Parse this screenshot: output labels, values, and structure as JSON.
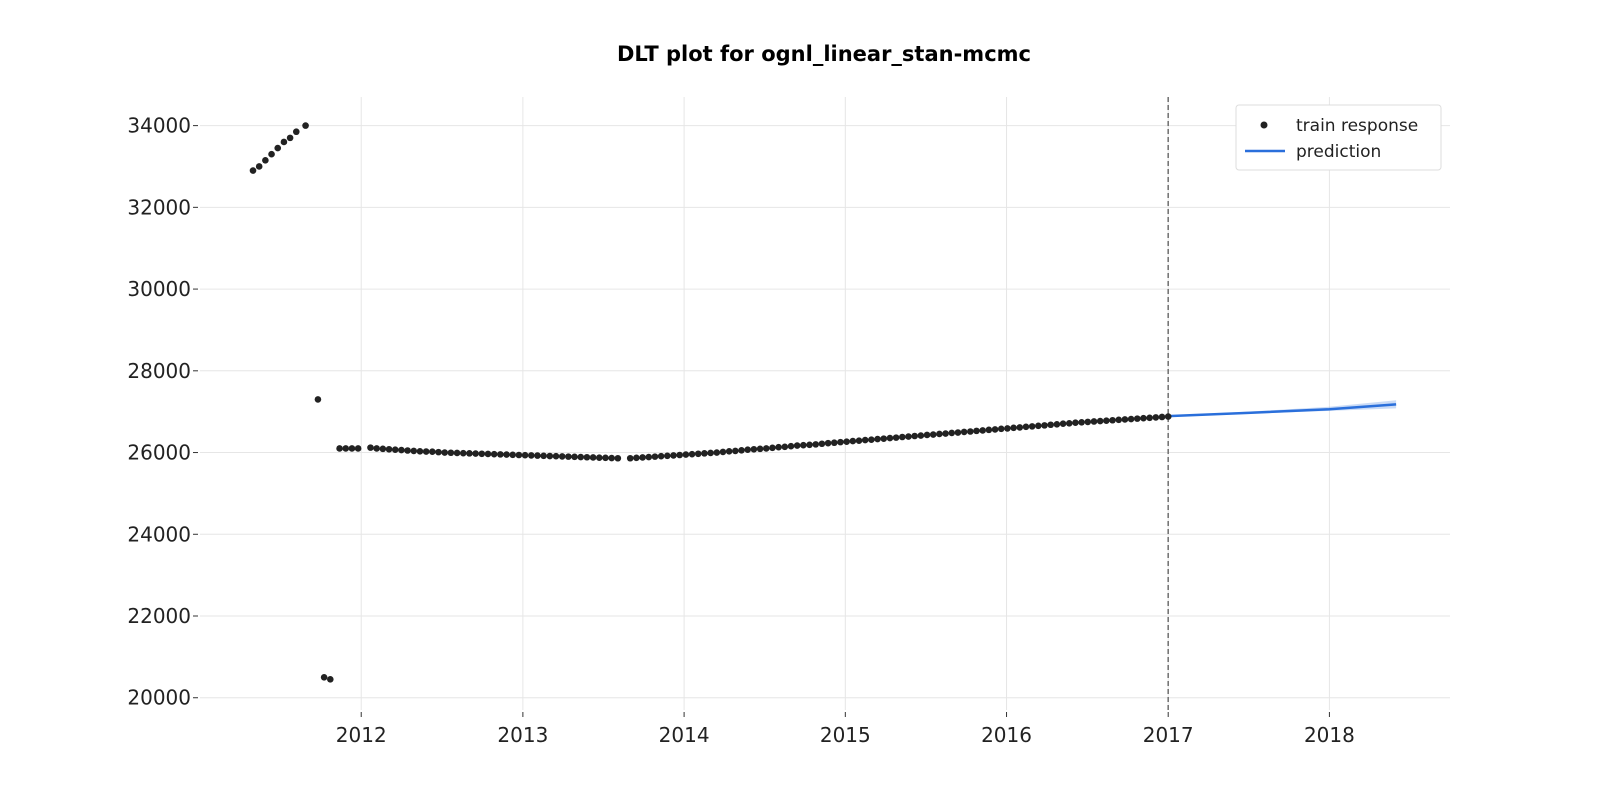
{
  "chart_data": {
    "type": "line",
    "title": "DLT plot for ognl_linear_stan-mcmc",
    "xlabel": "",
    "ylabel": "",
    "x_range": [
      "2011-01-01",
      "2018-10-01"
    ],
    "ylim": [
      19700,
      34700
    ],
    "grid": true,
    "legend_position": "top-right",
    "x_ticks": [
      "2012",
      "2013",
      "2014",
      "2015",
      "2016",
      "2017",
      "2018"
    ],
    "y_ticks": [
      "20000",
      "22000",
      "24000",
      "26000",
      "28000",
      "30000",
      "32000",
      "34000"
    ],
    "train_end": "2017-01-01",
    "series": [
      {
        "name": "train response",
        "kind": "scatter",
        "color": "#222222",
        "points": [
          [
            "2011-05-01",
            32900
          ],
          [
            "2011-05-15",
            33000
          ],
          [
            "2011-05-29",
            33150
          ],
          [
            "2011-06-12",
            33300
          ],
          [
            "2011-06-26",
            33450
          ],
          [
            "2011-07-10",
            33600
          ],
          [
            "2011-07-24",
            33700
          ],
          [
            "2011-08-07",
            33850
          ],
          [
            "2011-08-28",
            34000
          ],
          [
            "2011-09-25",
            27300
          ],
          [
            "2011-10-09",
            20500
          ],
          [
            "2011-10-23",
            20450
          ],
          [
            "2011-11-13",
            26100
          ],
          [
            "2011-11-27",
            26100
          ],
          [
            "2011-12-11",
            26100
          ],
          [
            "2011-12-25",
            26100
          ],
          [
            "2012-01-22",
            26120
          ],
          [
            "2012-02-05",
            26100
          ],
          [
            "2012-02-19",
            26090
          ],
          [
            "2012-03-04",
            26080
          ],
          [
            "2012-03-18",
            26070
          ],
          [
            "2012-04-01",
            26060
          ],
          [
            "2012-04-15",
            26050
          ],
          [
            "2012-04-29",
            26040
          ],
          [
            "2012-05-13",
            26030
          ],
          [
            "2012-05-27",
            26025
          ],
          [
            "2012-06-10",
            26020
          ],
          [
            "2012-06-24",
            26010
          ],
          [
            "2012-07-08",
            26000
          ],
          [
            "2012-07-22",
            25995
          ],
          [
            "2012-08-05",
            25990
          ],
          [
            "2012-08-19",
            25985
          ],
          [
            "2012-09-02",
            25980
          ],
          [
            "2012-09-16",
            25975
          ],
          [
            "2012-09-30",
            25970
          ],
          [
            "2012-10-14",
            25965
          ],
          [
            "2012-10-28",
            25960
          ],
          [
            "2012-11-11",
            25955
          ],
          [
            "2012-11-25",
            25950
          ],
          [
            "2012-12-09",
            25945
          ],
          [
            "2012-12-23",
            25940
          ],
          [
            "2013-01-06",
            25935
          ],
          [
            "2013-01-20",
            25930
          ],
          [
            "2013-02-03",
            25925
          ],
          [
            "2013-02-17",
            25920
          ],
          [
            "2013-03-03",
            25915
          ],
          [
            "2013-03-17",
            25910
          ],
          [
            "2013-03-31",
            25905
          ],
          [
            "2013-04-14",
            25900
          ],
          [
            "2013-04-28",
            25895
          ],
          [
            "2013-05-12",
            25890
          ],
          [
            "2013-05-26",
            25885
          ],
          [
            "2013-06-09",
            25880
          ],
          [
            "2013-06-23",
            25875
          ],
          [
            "2013-07-07",
            25870
          ],
          [
            "2013-07-21",
            25865
          ],
          [
            "2013-08-04",
            25860
          ],
          [
            "2013-09-01",
            25860
          ],
          [
            "2013-09-15",
            25870
          ],
          [
            "2013-09-29",
            25880
          ],
          [
            "2013-10-13",
            25890
          ],
          [
            "2013-10-27",
            25900
          ],
          [
            "2013-11-10",
            25910
          ],
          [
            "2013-11-24",
            25920
          ],
          [
            "2013-12-08",
            25930
          ],
          [
            "2013-12-22",
            25940
          ],
          [
            "2014-01-05",
            25950
          ],
          [
            "2014-01-19",
            25960
          ],
          [
            "2014-02-02",
            25970
          ],
          [
            "2014-02-16",
            25980
          ],
          [
            "2014-03-02",
            25990
          ],
          [
            "2014-03-16",
            26000
          ],
          [
            "2014-03-30",
            26015
          ],
          [
            "2014-04-13",
            26030
          ],
          [
            "2014-04-27",
            26040
          ],
          [
            "2014-05-11",
            26055
          ],
          [
            "2014-05-25",
            26070
          ],
          [
            "2014-06-08",
            26080
          ],
          [
            "2014-06-22",
            26090
          ],
          [
            "2014-07-06",
            26100
          ],
          [
            "2014-07-20",
            26115
          ],
          [
            "2014-08-03",
            26130
          ],
          [
            "2014-08-17",
            26140
          ],
          [
            "2014-08-31",
            26155
          ],
          [
            "2014-09-14",
            26170
          ],
          [
            "2014-09-28",
            26180
          ],
          [
            "2014-10-12",
            26190
          ],
          [
            "2014-10-26",
            26200
          ],
          [
            "2014-11-09",
            26215
          ],
          [
            "2014-11-23",
            26230
          ],
          [
            "2014-12-07",
            26240
          ],
          [
            "2014-12-21",
            26255
          ],
          [
            "2015-01-04",
            26265
          ],
          [
            "2015-01-18",
            26280
          ],
          [
            "2015-02-01",
            26290
          ],
          [
            "2015-02-15",
            26305
          ],
          [
            "2015-03-01",
            26315
          ],
          [
            "2015-03-15",
            26330
          ],
          [
            "2015-03-29",
            26340
          ],
          [
            "2015-04-12",
            26355
          ],
          [
            "2015-04-26",
            26365
          ],
          [
            "2015-05-10",
            26380
          ],
          [
            "2015-05-24",
            26390
          ],
          [
            "2015-06-07",
            26405
          ],
          [
            "2015-06-21",
            26415
          ],
          [
            "2015-07-05",
            26430
          ],
          [
            "2015-07-19",
            26440
          ],
          [
            "2015-08-02",
            26455
          ],
          [
            "2015-08-16",
            26465
          ],
          [
            "2015-08-30",
            26480
          ],
          [
            "2015-09-13",
            26490
          ],
          [
            "2015-09-27",
            26505
          ],
          [
            "2015-10-11",
            26515
          ],
          [
            "2015-10-25",
            26530
          ],
          [
            "2015-11-08",
            26540
          ],
          [
            "2015-11-22",
            26555
          ],
          [
            "2015-12-06",
            26565
          ],
          [
            "2015-12-20",
            26580
          ],
          [
            "2016-01-03",
            26590
          ],
          [
            "2016-01-17",
            26605
          ],
          [
            "2016-01-31",
            26615
          ],
          [
            "2016-02-14",
            26630
          ],
          [
            "2016-02-28",
            26640
          ],
          [
            "2016-03-13",
            26655
          ],
          [
            "2016-03-27",
            26665
          ],
          [
            "2016-04-10",
            26680
          ],
          [
            "2016-04-24",
            26690
          ],
          [
            "2016-05-08",
            26705
          ],
          [
            "2016-05-22",
            26715
          ],
          [
            "2016-06-05",
            26730
          ],
          [
            "2016-06-19",
            26740
          ],
          [
            "2016-07-03",
            26750
          ],
          [
            "2016-07-17",
            26760
          ],
          [
            "2016-07-31",
            26770
          ],
          [
            "2016-08-14",
            26780
          ],
          [
            "2016-08-28",
            26790
          ],
          [
            "2016-09-11",
            26800
          ],
          [
            "2016-09-25",
            26810
          ],
          [
            "2016-10-09",
            26820
          ],
          [
            "2016-10-23",
            26830
          ],
          [
            "2016-11-06",
            26840
          ],
          [
            "2016-11-20",
            26850
          ],
          [
            "2016-12-04",
            26860
          ],
          [
            "2016-12-18",
            26870
          ],
          [
            "2017-01-01",
            26880
          ]
        ]
      },
      {
        "name": "prediction",
        "kind": "line",
        "color": "#2a6fdb",
        "points": [
          [
            "2017-01-01",
            26890
          ],
          [
            "2017-07-01",
            26970
          ],
          [
            "2018-01-01",
            27060
          ],
          [
            "2018-06-01",
            27180
          ]
        ],
        "band_upper": [
          [
            "2017-01-01",
            26900
          ],
          [
            "2017-07-01",
            27000
          ],
          [
            "2018-01-01",
            27120
          ],
          [
            "2018-06-01",
            27280
          ]
        ],
        "band_lower": [
          [
            "2017-01-01",
            26880
          ],
          [
            "2017-07-01",
            26950
          ],
          [
            "2018-01-01",
            27020
          ],
          [
            "2018-06-01",
            27080
          ]
        ]
      }
    ]
  }
}
